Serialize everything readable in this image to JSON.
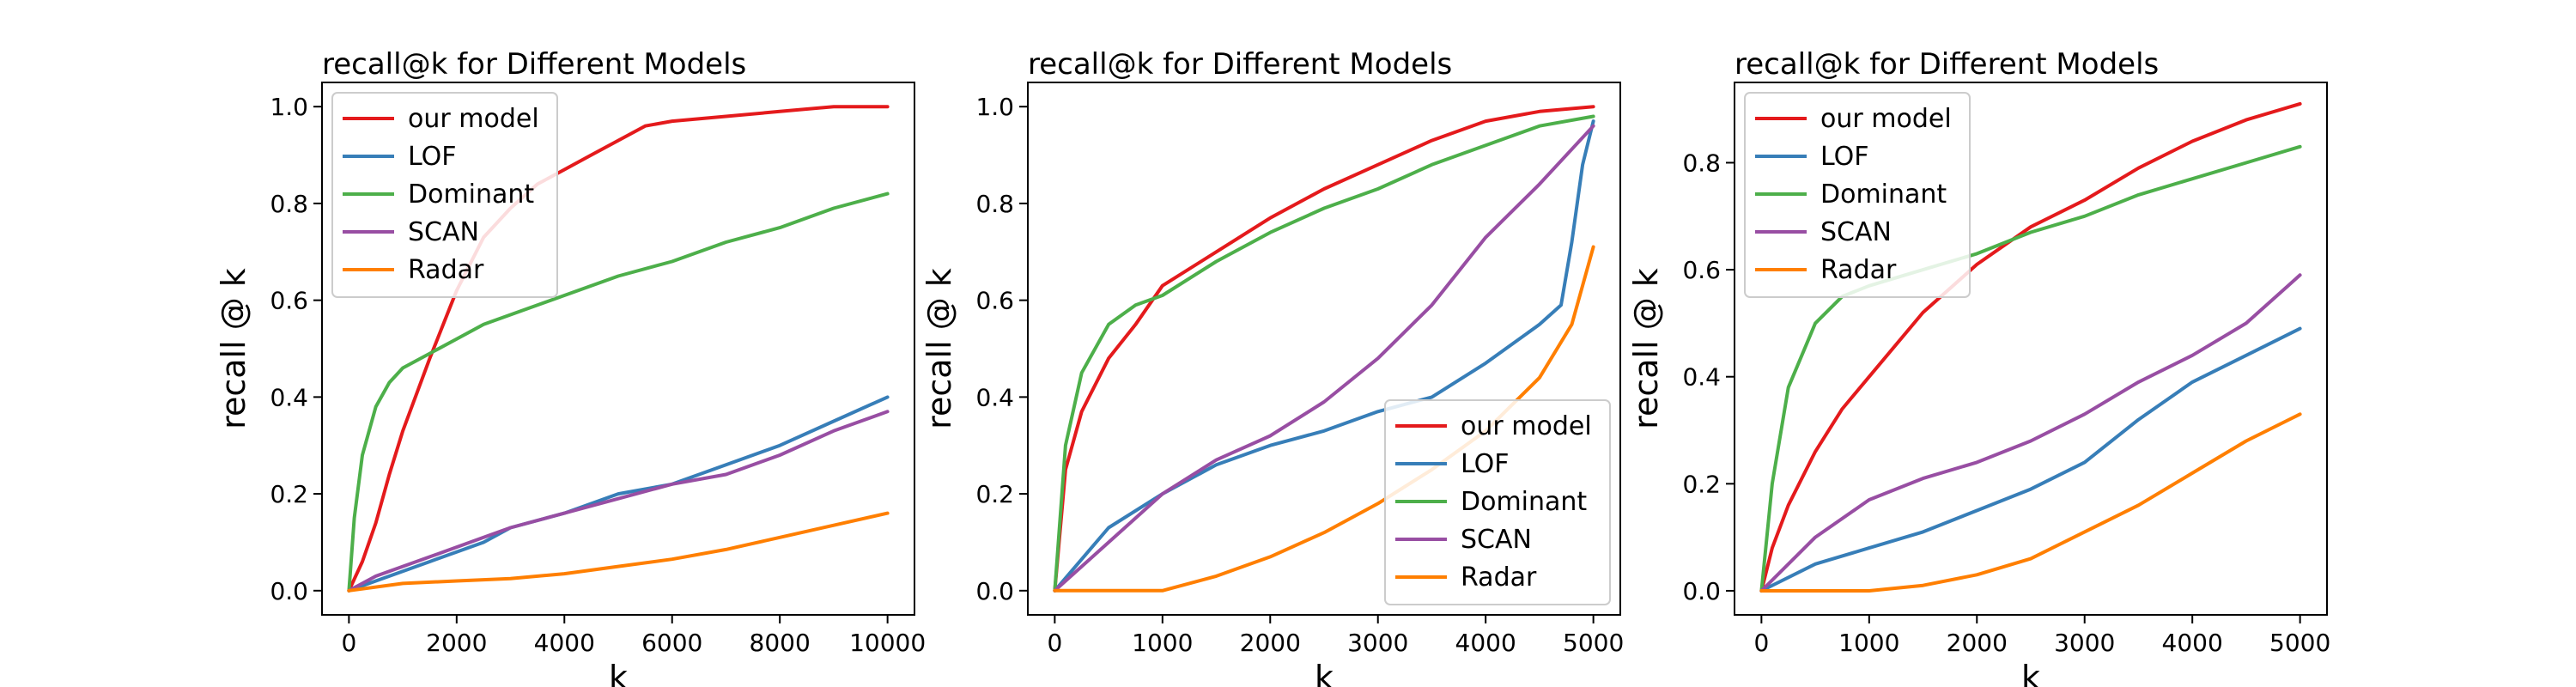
{
  "colors": {
    "our model": "#e41a1c",
    "LOF": "#377eb8",
    "Dominant": "#4daf4a",
    "SCAN": "#984ea3",
    "Radar": "#ff7f00"
  },
  "chart_data": [
    {
      "type": "line",
      "title": "recall@k for Different Models",
      "xlabel": "k",
      "ylabel": "recall @ k",
      "xlim": [
        -500,
        10500
      ],
      "ylim": [
        -0.05,
        1.05
      ],
      "xticks": [
        0,
        2000,
        4000,
        6000,
        8000,
        10000
      ],
      "xtick_labels": [
        "0",
        "2000",
        "4000",
        "6000",
        "8000",
        "10000"
      ],
      "yticks": [
        0.0,
        0.2,
        0.4,
        0.6,
        0.8,
        1.0
      ],
      "ytick_labels": [
        "0.0",
        "0.2",
        "0.4",
        "0.6",
        "0.8",
        "1.0"
      ],
      "legend": "top-left",
      "grid": false,
      "series": [
        {
          "name": "our model",
          "x": [
            0,
            250,
            500,
            750,
            1000,
            1500,
            2000,
            2500,
            3000,
            3500,
            4000,
            4500,
            5000,
            5500,
            6000,
            7000,
            8000,
            9000,
            10000
          ],
          "y": [
            0.0,
            0.06,
            0.14,
            0.24,
            0.33,
            0.48,
            0.62,
            0.73,
            0.79,
            0.84,
            0.87,
            0.9,
            0.93,
            0.96,
            0.97,
            0.98,
            0.99,
            1.0,
            1.0
          ]
        },
        {
          "name": "LOF",
          "x": [
            0,
            500,
            1000,
            1500,
            2000,
            2500,
            3000,
            4000,
            5000,
            6000,
            7000,
            8000,
            9000,
            10000
          ],
          "y": [
            0.0,
            0.02,
            0.04,
            0.06,
            0.08,
            0.1,
            0.13,
            0.16,
            0.2,
            0.22,
            0.26,
            0.3,
            0.35,
            0.4
          ]
        },
        {
          "name": "Dominant",
          "x": [
            0,
            100,
            250,
            500,
            750,
            1000,
            1500,
            2000,
            2500,
            3000,
            4000,
            5000,
            6000,
            7000,
            8000,
            9000,
            10000
          ],
          "y": [
            0.0,
            0.15,
            0.28,
            0.38,
            0.43,
            0.46,
            0.49,
            0.52,
            0.55,
            0.57,
            0.61,
            0.65,
            0.68,
            0.72,
            0.75,
            0.79,
            0.82
          ]
        },
        {
          "name": "SCAN",
          "x": [
            0,
            500,
            1000,
            1500,
            2000,
            2500,
            3000,
            4000,
            5000,
            6000,
            7000,
            8000,
            9000,
            10000
          ],
          "y": [
            0.0,
            0.03,
            0.05,
            0.07,
            0.09,
            0.11,
            0.13,
            0.16,
            0.19,
            0.22,
            0.24,
            0.28,
            0.33,
            0.37
          ]
        },
        {
          "name": "Radar",
          "x": [
            0,
            1000,
            2000,
            3000,
            4000,
            5000,
            6000,
            7000,
            8000,
            9000,
            10000
          ],
          "y": [
            0.0,
            0.015,
            0.02,
            0.025,
            0.035,
            0.05,
            0.065,
            0.085,
            0.11,
            0.135,
            0.16
          ]
        }
      ]
    },
    {
      "type": "line",
      "title": "recall@k for Different Models",
      "xlabel": "k",
      "ylabel": "recall @ k",
      "xlim": [
        -250,
        5250
      ],
      "ylim": [
        -0.05,
        1.05
      ],
      "xticks": [
        0,
        1000,
        2000,
        3000,
        4000,
        5000
      ],
      "xtick_labels": [
        "0",
        "1000",
        "2000",
        "3000",
        "4000",
        "5000"
      ],
      "yticks": [
        0.0,
        0.2,
        0.4,
        0.6,
        0.8,
        1.0
      ],
      "ytick_labels": [
        "0.0",
        "0.2",
        "0.4",
        "0.6",
        "0.8",
        "1.0"
      ],
      "legend": "bottom-right",
      "grid": false,
      "series": [
        {
          "name": "our model",
          "x": [
            0,
            100,
            250,
            500,
            750,
            1000,
            1500,
            2000,
            2500,
            3000,
            3500,
            4000,
            4500,
            5000
          ],
          "y": [
            0.0,
            0.25,
            0.37,
            0.48,
            0.55,
            0.63,
            0.7,
            0.77,
            0.83,
            0.88,
            0.93,
            0.97,
            0.99,
            1.0
          ]
        },
        {
          "name": "LOF",
          "x": [
            0,
            500,
            1000,
            1500,
            2000,
            2500,
            3000,
            3500,
            4000,
            4500,
            4700,
            4800,
            4900,
            5000
          ],
          "y": [
            0.0,
            0.13,
            0.2,
            0.26,
            0.3,
            0.33,
            0.37,
            0.4,
            0.47,
            0.55,
            0.59,
            0.72,
            0.88,
            0.97
          ]
        },
        {
          "name": "Dominant",
          "x": [
            0,
            100,
            250,
            500,
            750,
            1000,
            1500,
            2000,
            2500,
            3000,
            3500,
            4000,
            4500,
            5000
          ],
          "y": [
            0.0,
            0.3,
            0.45,
            0.55,
            0.59,
            0.61,
            0.68,
            0.74,
            0.79,
            0.83,
            0.88,
            0.92,
            0.96,
            0.98
          ]
        },
        {
          "name": "SCAN",
          "x": [
            0,
            500,
            1000,
            1500,
            2000,
            2500,
            3000,
            3500,
            4000,
            4500,
            5000
          ],
          "y": [
            0.0,
            0.1,
            0.2,
            0.27,
            0.32,
            0.39,
            0.48,
            0.59,
            0.73,
            0.84,
            0.96
          ]
        },
        {
          "name": "Radar",
          "x": [
            0,
            1000,
            1500,
            2000,
            2500,
            3000,
            3500,
            4000,
            4500,
            4800,
            5000
          ],
          "y": [
            0.0,
            0.0,
            0.03,
            0.07,
            0.12,
            0.18,
            0.25,
            0.33,
            0.44,
            0.55,
            0.71
          ]
        }
      ]
    },
    {
      "type": "line",
      "title": "recall@k for Different Models",
      "xlabel": "k",
      "ylabel": "recall @ k",
      "xlim": [
        -250,
        5250
      ],
      "ylim": [
        -0.045,
        0.95
      ],
      "xticks": [
        0,
        1000,
        2000,
        3000,
        4000,
        5000
      ],
      "xtick_labels": [
        "0",
        "1000",
        "2000",
        "3000",
        "4000",
        "5000"
      ],
      "yticks": [
        0.0,
        0.2,
        0.4,
        0.6,
        0.8
      ],
      "ytick_labels": [
        "0.0",
        "0.2",
        "0.4",
        "0.6",
        "0.8"
      ],
      "legend": "top-left",
      "grid": false,
      "series": [
        {
          "name": "our model",
          "x": [
            0,
            100,
            250,
            500,
            750,
            1000,
            1500,
            2000,
            2500,
            3000,
            3500,
            4000,
            4500,
            5000
          ],
          "y": [
            0.0,
            0.08,
            0.16,
            0.26,
            0.34,
            0.4,
            0.52,
            0.61,
            0.68,
            0.73,
            0.79,
            0.84,
            0.88,
            0.91
          ]
        },
        {
          "name": "LOF",
          "x": [
            0,
            500,
            1000,
            1500,
            2000,
            2500,
            3000,
            3500,
            4000,
            4500,
            5000
          ],
          "y": [
            0.0,
            0.05,
            0.08,
            0.11,
            0.15,
            0.19,
            0.24,
            0.32,
            0.39,
            0.44,
            0.49
          ]
        },
        {
          "name": "Dominant",
          "x": [
            0,
            100,
            250,
            500,
            750,
            1000,
            1500,
            2000,
            2500,
            3000,
            3500,
            4000,
            4500,
            5000
          ],
          "y": [
            0.0,
            0.2,
            0.38,
            0.5,
            0.55,
            0.57,
            0.6,
            0.63,
            0.67,
            0.7,
            0.74,
            0.77,
            0.8,
            0.83
          ]
        },
        {
          "name": "SCAN",
          "x": [
            0,
            500,
            1000,
            1500,
            2000,
            2500,
            3000,
            3500,
            4000,
            4500,
            5000
          ],
          "y": [
            0.0,
            0.1,
            0.17,
            0.21,
            0.24,
            0.28,
            0.33,
            0.39,
            0.44,
            0.5,
            0.59
          ]
        },
        {
          "name": "Radar",
          "x": [
            0,
            1000,
            1500,
            2000,
            2500,
            3000,
            3500,
            4000,
            4500,
            5000
          ],
          "y": [
            0.0,
            0.0,
            0.01,
            0.03,
            0.06,
            0.11,
            0.16,
            0.22,
            0.28,
            0.33
          ]
        }
      ]
    }
  ]
}
